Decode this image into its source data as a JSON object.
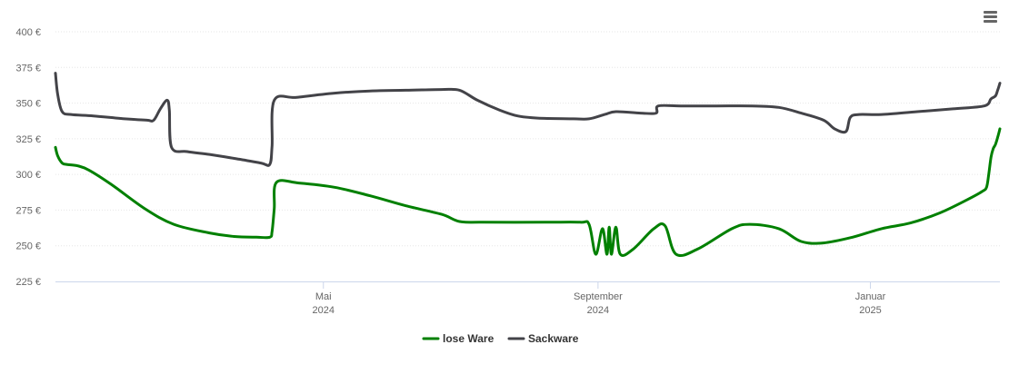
{
  "menu": {
    "icon": "hamburger-menu-icon"
  },
  "chart_data": {
    "type": "line",
    "title": "",
    "xlabel": "",
    "ylabel": "",
    "x_range": [
      "2024-01-02",
      "2025-02-28"
    ],
    "ylim": [
      225,
      400
    ],
    "y_ticks": [
      225,
      250,
      275,
      300,
      325,
      350,
      375,
      400
    ],
    "y_tick_labels": [
      "225 €",
      "250 €",
      "275 €",
      "300 €",
      "325 €",
      "350 €",
      "375 €",
      "400 €"
    ],
    "x_ticks": [
      {
        "date": "2024-05-01",
        "month": "Mai",
        "year": "2024"
      },
      {
        "date": "2024-09-01",
        "month": "September",
        "year": "2024"
      },
      {
        "date": "2025-01-01",
        "month": "Januar",
        "year": "2025"
      }
    ],
    "grid": true,
    "legend": "bottom-center",
    "series": [
      {
        "name": "lose Ware",
        "color": "#008000",
        "points": [
          [
            "2024-01-02",
            319
          ],
          [
            "2024-01-03",
            313
          ],
          [
            "2024-01-05",
            308
          ],
          [
            "2024-01-07",
            307
          ],
          [
            "2024-01-12",
            306
          ],
          [
            "2024-01-17",
            303
          ],
          [
            "2024-01-27",
            293
          ],
          [
            "2024-02-11",
            276
          ],
          [
            "2024-02-24",
            265
          ],
          [
            "2024-03-11",
            259
          ],
          [
            "2024-03-22",
            256.5
          ],
          [
            "2024-04-01",
            256
          ],
          [
            "2024-04-07",
            256
          ],
          [
            "2024-04-08",
            260
          ],
          [
            "2024-04-09",
            276
          ],
          [
            "2024-04-10",
            294.5
          ],
          [
            "2024-04-20",
            294
          ],
          [
            "2024-05-06",
            291
          ],
          [
            "2024-05-22",
            285
          ],
          [
            "2024-06-07",
            278
          ],
          [
            "2024-06-23",
            272
          ],
          [
            "2024-07-01",
            267
          ],
          [
            "2024-07-11",
            266.5
          ],
          [
            "2024-08-08",
            266.5
          ],
          [
            "2024-08-24",
            266.5
          ],
          [
            "2024-08-28",
            265
          ],
          [
            "2024-08-31",
            244
          ],
          [
            "2024-09-03",
            262
          ],
          [
            "2024-09-05",
            244
          ],
          [
            "2024-09-06",
            263
          ],
          [
            "2024-09-07",
            244
          ],
          [
            "2024-09-09",
            263
          ],
          [
            "2024-09-11",
            244
          ],
          [
            "2024-09-17",
            248
          ],
          [
            "2024-09-26",
            262
          ],
          [
            "2024-10-01",
            264
          ],
          [
            "2024-10-06",
            244
          ],
          [
            "2024-10-16",
            248
          ],
          [
            "2024-10-31",
            262
          ],
          [
            "2024-11-08",
            265
          ],
          [
            "2024-11-21",
            262
          ],
          [
            "2024-12-01",
            253
          ],
          [
            "2024-12-11",
            252
          ],
          [
            "2024-12-24",
            256
          ],
          [
            "2025-01-06",
            262
          ],
          [
            "2025-01-19",
            266
          ],
          [
            "2025-02-01",
            273
          ],
          [
            "2025-02-13",
            282
          ],
          [
            "2025-02-20",
            288
          ],
          [
            "2025-02-22",
            291
          ],
          [
            "2025-02-23",
            300
          ],
          [
            "2025-02-24",
            312
          ],
          [
            "2025-02-25",
            318
          ],
          [
            "2025-02-26",
            321
          ],
          [
            "2025-02-27",
            326
          ],
          [
            "2025-02-28",
            332
          ]
        ]
      },
      {
        "name": "Sackware",
        "color": "#434348",
        "points": [
          [
            "2024-01-02",
            371
          ],
          [
            "2024-01-03",
            356
          ],
          [
            "2024-01-05",
            344
          ],
          [
            "2024-01-09",
            342
          ],
          [
            "2024-01-19",
            341
          ],
          [
            "2024-02-02",
            339
          ],
          [
            "2024-02-12",
            338
          ],
          [
            "2024-02-15",
            338
          ],
          [
            "2024-02-18",
            346
          ],
          [
            "2024-02-21",
            352
          ],
          [
            "2024-02-22",
            345
          ],
          [
            "2024-02-23",
            319
          ],
          [
            "2024-03-01",
            316
          ],
          [
            "2024-03-11",
            314
          ],
          [
            "2024-03-23",
            311
          ],
          [
            "2024-04-03",
            308
          ],
          [
            "2024-04-07",
            307
          ],
          [
            "2024-04-08",
            320
          ],
          [
            "2024-04-09",
            352
          ],
          [
            "2024-04-19",
            354
          ],
          [
            "2024-05-06",
            357
          ],
          [
            "2024-05-22",
            358.5
          ],
          [
            "2024-06-07",
            359
          ],
          [
            "2024-06-23",
            359.5
          ],
          [
            "2024-07-01",
            359
          ],
          [
            "2024-07-09",
            352
          ],
          [
            "2024-07-19",
            345
          ],
          [
            "2024-07-27",
            341
          ],
          [
            "2024-08-05",
            339.5
          ],
          [
            "2024-08-21",
            339
          ],
          [
            "2024-08-28",
            339
          ],
          [
            "2024-09-04",
            342
          ],
          [
            "2024-09-09",
            344
          ],
          [
            "2024-09-20",
            343
          ],
          [
            "2024-09-27",
            343
          ],
          [
            "2024-09-28",
            348
          ],
          [
            "2024-10-08",
            348
          ],
          [
            "2024-10-24",
            348
          ],
          [
            "2024-11-09",
            348
          ],
          [
            "2024-11-21",
            347
          ],
          [
            "2024-12-01",
            343
          ],
          [
            "2024-12-11",
            338
          ],
          [
            "2024-12-16",
            332
          ],
          [
            "2024-12-21",
            330
          ],
          [
            "2024-12-23",
            340
          ],
          [
            "2024-12-27",
            342
          ],
          [
            "2025-01-06",
            342
          ],
          [
            "2025-01-22",
            344
          ],
          [
            "2025-02-07",
            346
          ],
          [
            "2025-02-21",
            348
          ],
          [
            "2025-02-24",
            353
          ],
          [
            "2025-02-26",
            355
          ],
          [
            "2025-02-27",
            359
          ],
          [
            "2025-02-28",
            364
          ]
        ]
      }
    ]
  }
}
